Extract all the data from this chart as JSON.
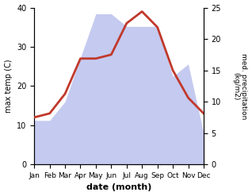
{
  "months": [
    "Jan",
    "Feb",
    "Mar",
    "Apr",
    "May",
    "Jun",
    "Jul",
    "Aug",
    "Sep",
    "Oct",
    "Nov",
    "Dec"
  ],
  "temp": [
    12,
    13,
    18,
    27,
    27,
    28,
    36,
    39,
    35,
    24,
    17,
    13
  ],
  "precip": [
    7,
    7,
    10,
    17,
    24,
    24,
    22,
    22,
    22,
    14,
    16,
    5
  ],
  "temp_color": "#c0392b",
  "precip_fill_color": "#c5caf0",
  "ylabel_left": "max temp (C)",
  "ylabel_right": "med. precipitation\n(kg/m2)",
  "xlabel": "date (month)",
  "ylim_left": [
    0,
    40
  ],
  "ylim_right": [
    0,
    25
  ],
  "bg_color": "#ffffff",
  "temp_linewidth": 2.0
}
